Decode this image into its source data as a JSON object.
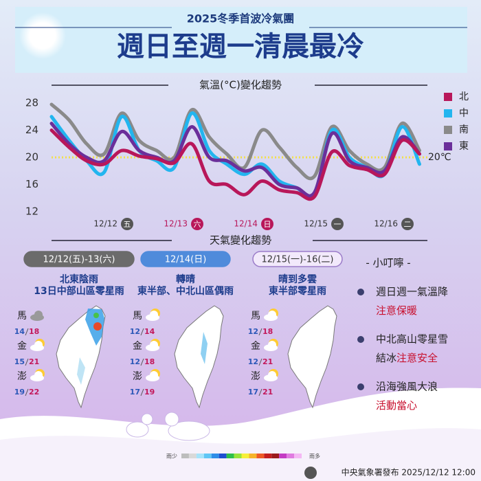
{
  "header": {
    "subtitle": "2025冬季首波冷氣團",
    "title": "週日至週一清晨最冷"
  },
  "chart_data": {
    "type": "line",
    "title": "氣溫(°C)變化趨勢",
    "categories": [
      null,
      null,
      null,
      null,
      "12/12",
      null,
      null,
      null,
      "12/13",
      null,
      null,
      null,
      "12/14",
      null,
      null,
      null,
      "12/15",
      null,
      null,
      null,
      "12/16",
      null
    ],
    "weekdays": [
      null,
      null,
      null,
      null,
      "五",
      null,
      null,
      null,
      "六",
      null,
      null,
      null,
      "日",
      null,
      null,
      null,
      "一",
      null,
      null,
      null,
      "二",
      null
    ],
    "series": [
      {
        "name": "北",
        "color": "#b8175a",
        "values": [
          24,
          21.5,
          19.5,
          19,
          21,
          20.2,
          19.8,
          19.2,
          22,
          16.5,
          16,
          14.5,
          16.5,
          15.2,
          14.8,
          14.2,
          20.8,
          18.8,
          18.2,
          17.5,
          22.5,
          20.5
        ]
      },
      {
        "name": "中",
        "color": "#22b5ef",
        "values": [
          26,
          22.5,
          19.5,
          17.8,
          26,
          21,
          19.5,
          18.5,
          26.5,
          21,
          19,
          17.5,
          19,
          16.5,
          15.5,
          14.5,
          24,
          20,
          18.5,
          17.5,
          24.5,
          19
        ]
      },
      {
        "name": "南",
        "color": "#8a8a8a",
        "values": [
          27.8,
          25.5,
          22,
          20.5,
          26.5,
          22.5,
          21,
          20,
          27,
          23,
          20.5,
          18.5,
          24,
          21.5,
          18.5,
          17.2,
          24.5,
          21,
          19,
          18.5,
          25,
          21
        ]
      },
      {
        "name": "東",
        "color": "#6b2f9a",
        "values": [
          25,
          22,
          20,
          19.5,
          23.8,
          21,
          20,
          19.5,
          24.5,
          20,
          19.5,
          18,
          18.5,
          16,
          15.5,
          14.8,
          23.5,
          19.5,
          18.5,
          18,
          23,
          20.5
        ]
      }
    ],
    "ylim": [
      12,
      28
    ],
    "yticks": [
      12,
      16,
      20,
      24,
      28
    ],
    "reference_line": {
      "value": 20,
      "label": "20℃",
      "color": "#f2e04a"
    },
    "legend_position": "right"
  },
  "weather_section": {
    "title": "天氣變化趨勢",
    "panels": [
      {
        "period": "12/12(五)-13(六)",
        "summary": [
          "北東陰雨",
          "13日中部山區零星雨"
        ],
        "stations": [
          {
            "name": "馬",
            "low": 14,
            "high": 18
          },
          {
            "name": "金",
            "low": 15,
            "high": 21
          },
          {
            "name": "澎",
            "low": 19,
            "high": 22
          }
        ]
      },
      {
        "period": "12/14(日)",
        "summary": [
          "轉晴",
          "東半部、中北山區偶雨"
        ],
        "stations": [
          {
            "name": "馬",
            "low": 12,
            "high": 14
          },
          {
            "name": "金",
            "low": 12,
            "high": 18
          },
          {
            "name": "澎",
            "low": 17,
            "high": 19
          }
        ]
      },
      {
        "period": "12/15(一)-16(二)",
        "summary": [
          "晴到多雲",
          "東半部零星雨"
        ],
        "stations": [
          {
            "name": "馬",
            "low": 12,
            "high": 18
          },
          {
            "name": "金",
            "low": 12,
            "high": 21
          },
          {
            "name": "澎",
            "low": 17,
            "high": 21
          }
        ]
      }
    ]
  },
  "tips": {
    "title": "- 小叮嚀 -",
    "items": [
      {
        "text": "週日週一氣溫降",
        "note": "注意保暖"
      },
      {
        "text": "中北高山零星雪",
        "note_prefix": "結冰",
        "note": "注意安全"
      },
      {
        "text": "沿海強風大浪",
        "note": "活動當心"
      }
    ]
  },
  "rain_scale": {
    "low": "雨少",
    "high": "雨多",
    "colors": [
      "#bdbdbd",
      "#d9d9d9",
      "#a6e4fb",
      "#5fc6f5",
      "#2f8ee8",
      "#1f4fd0",
      "#2fbf4a",
      "#98e33b",
      "#f7ef3a",
      "#f6b42a",
      "#ee5a26",
      "#c41f1f",
      "#9b1b1b",
      "#c43bc4",
      "#e07be0",
      "#f4b8f4"
    ]
  },
  "footer": "中央氣象署發布 2025/12/12 12:00"
}
